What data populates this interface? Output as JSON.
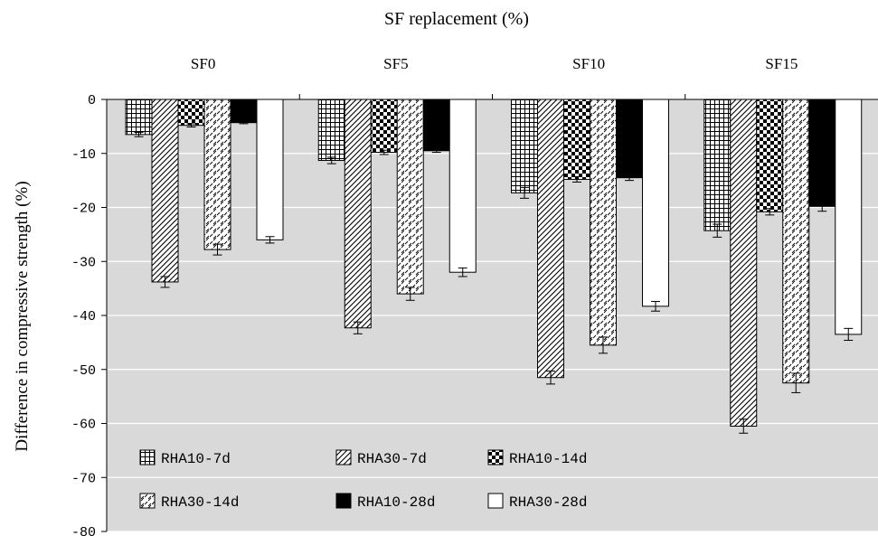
{
  "chart_data": {
    "type": "bar",
    "title": "SF replacement (%)",
    "xlabel": "",
    "ylabel": "Difference in compressive strength (%)",
    "categories": [
      "SF0",
      "SF5",
      "SF10",
      "SF15"
    ],
    "ylim": [
      -80,
      0
    ],
    "yticks": [
      "0",
      "-10",
      "-20",
      "-30",
      "-40",
      "-50",
      "-60",
      "-70",
      "-80"
    ],
    "grid": true,
    "x_axis_position": "top",
    "legend_position": "bottom-left",
    "series": [
      {
        "name": "RHA10-7d",
        "pattern": "grid",
        "values": [
          -6.5,
          -11.3,
          -17.3,
          -24.3
        ],
        "errors": [
          0.4,
          0.6,
          1.0,
          1.2
        ]
      },
      {
        "name": "RHA30-7d",
        "pattern": "diagonal",
        "values": [
          -33.8,
          -42.3,
          -51.5,
          -60.5
        ],
        "errors": [
          1.0,
          1.1,
          1.2,
          1.3
        ]
      },
      {
        "name": "RHA10-14d",
        "pattern": "checker",
        "values": [
          -4.8,
          -9.8,
          -14.8,
          -20.8
        ],
        "errors": [
          0.3,
          0.4,
          0.5,
          0.6
        ]
      },
      {
        "name": "RHA30-14d",
        "pattern": "dashed-diagonal",
        "values": [
          -27.8,
          -36.0,
          -45.5,
          -52.5
        ],
        "errors": [
          1.0,
          1.2,
          1.5,
          1.8
        ]
      },
      {
        "name": "RHA10-28d",
        "pattern": "solid-black",
        "values": [
          -4.3,
          -9.5,
          -14.5,
          -19.8
        ],
        "errors": [
          0.2,
          0.3,
          0.5,
          0.9
        ]
      },
      {
        "name": "RHA30-28d",
        "pattern": "solid-white",
        "values": [
          -26.0,
          -32.0,
          -38.3,
          -43.5
        ],
        "errors": [
          0.6,
          0.8,
          0.9,
          1.1
        ]
      }
    ]
  },
  "colors": {
    "plot_background": "#d9d9d9",
    "gridline": "#ffffff",
    "bar_outline": "#000000"
  }
}
